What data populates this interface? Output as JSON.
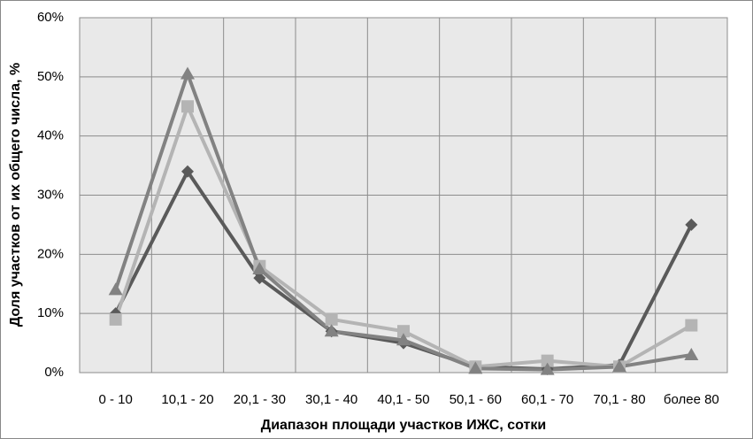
{
  "chart_data": {
    "type": "line",
    "x_label": "Диапазон площади участков ИЖС, сотки",
    "y_label": "Доля участков от их общего числа, %",
    "categories": [
      "0 - 10",
      "10,1 - 20",
      "20,1 - 30",
      "30,1 - 40",
      "40,1 - 50",
      "50,1 - 60",
      "60,1 - 70",
      "70,1 - 80",
      "более 80"
    ],
    "series": [
      {
        "color": "#5a5a5a",
        "marker": "diamond",
        "values": [
          10,
          34,
          16,
          7,
          5,
          1,
          0.6,
          1.3,
          25
        ]
      },
      {
        "color": "#b4b4b4",
        "marker": "square",
        "values": [
          9,
          45,
          18,
          9,
          7,
          1,
          2,
          1,
          8
        ]
      },
      {
        "color": "#828282",
        "marker": "triangle",
        "values": [
          14,
          50.5,
          17.5,
          7,
          5.5,
          0.7,
          0.5,
          1,
          3
        ]
      }
    ],
    "ylim": [
      0,
      60
    ],
    "yticks": [
      {
        "value": 0,
        "label": "0%"
      },
      {
        "value": 10,
        "label": "10%"
      },
      {
        "value": 20,
        "label": "20%"
      },
      {
        "value": 30,
        "label": "30%"
      },
      {
        "value": 40,
        "label": "40%"
      },
      {
        "value": 50,
        "label": "50%"
      },
      {
        "value": 60,
        "label": "60%"
      }
    ],
    "grid": true
  }
}
